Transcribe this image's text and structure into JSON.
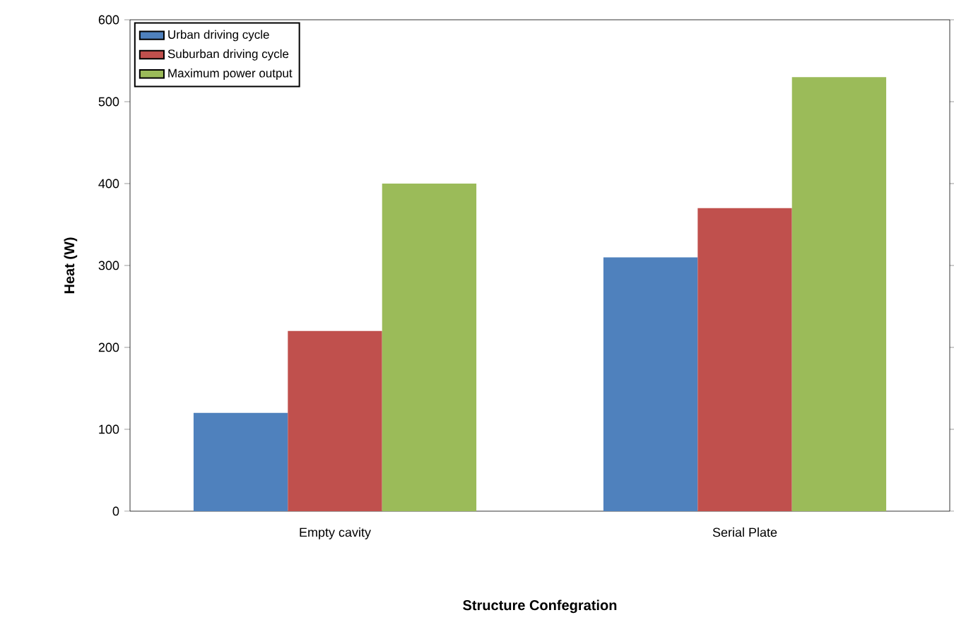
{
  "chart_data": {
    "type": "bar",
    "xlabel": "Structure Confegration",
    "ylabel": "Heat  (W)",
    "categories": [
      "Empty cavity",
      "Serial Plate"
    ],
    "series": [
      {
        "name": "Urban driving cycle",
        "color": "#4f81bd",
        "values": [
          120,
          310
        ]
      },
      {
        "name": "Suburban driving cycle",
        "color": "#c0504d",
        "values": [
          220,
          370
        ]
      },
      {
        "name": "Maximum power output",
        "color": "#9bbb59",
        "values": [
          400,
          530
        ]
      }
    ],
    "ylim": [
      0,
      600
    ],
    "yticks": [
      0,
      100,
      200,
      300,
      400,
      500,
      600
    ],
    "grid": false,
    "legend": "top left"
  }
}
